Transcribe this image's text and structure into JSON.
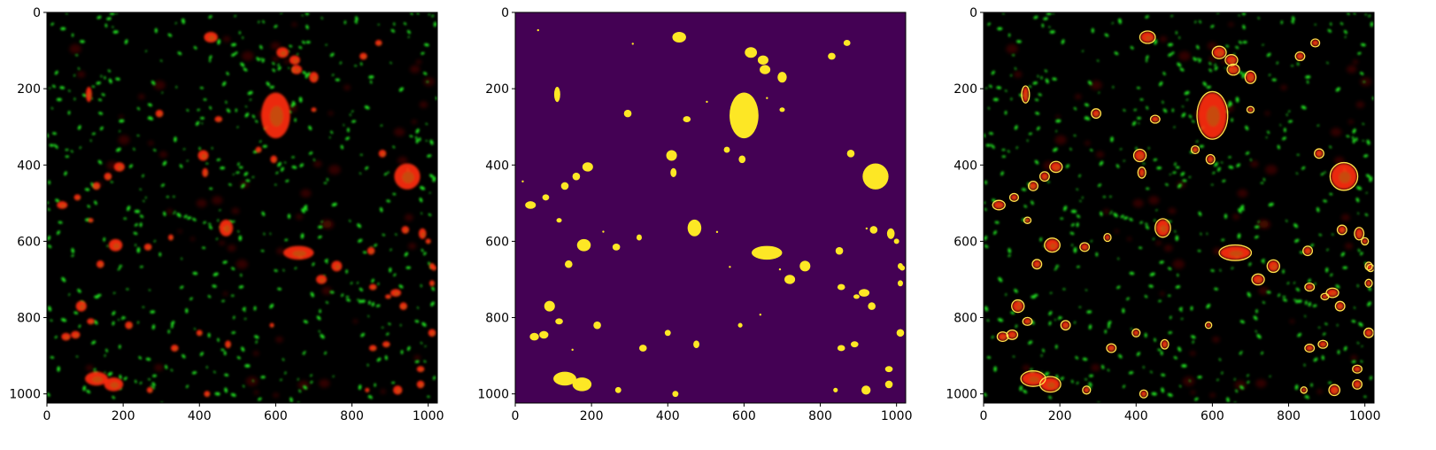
{
  "figure": {
    "panels": [
      {
        "name": "raw-fluorescence",
        "description_colors": {
          "background": "#000000",
          "cells": "#ff2a12",
          "particles": "#21e221"
        }
      },
      {
        "name": "binary-mask",
        "description_colors": {
          "background": "#440154",
          "foreground": "#fde725"
        }
      },
      {
        "name": "contour-overlay",
        "description_colors": {
          "background": "#000000",
          "contour": "#ffe24a"
        }
      }
    ],
    "axes": {
      "x_ticks": [
        "0",
        "200",
        "400",
        "600",
        "800",
        "1000"
      ],
      "y_ticks": [
        "0",
        "200",
        "400",
        "600",
        "800",
        "1000"
      ],
      "xlim": [
        0,
        1024
      ],
      "ylim": [
        1024,
        0
      ]
    }
  },
  "image_data": {
    "blobs": [
      [
        430,
        65,
        18,
        14
      ],
      [
        618,
        105,
        16,
        14
      ],
      [
        650,
        125,
        14,
        12
      ],
      [
        600,
        270,
        38,
        60
      ],
      [
        655,
        150,
        14,
        12
      ],
      [
        700,
        170,
        12,
        14
      ],
      [
        830,
        115,
        10,
        9
      ],
      [
        870,
        80,
        9,
        8
      ],
      [
        450,
        280,
        10,
        8
      ],
      [
        295,
        265,
        10,
        10
      ],
      [
        110,
        215,
        8,
        20
      ],
      [
        410,
        375,
        14,
        14
      ],
      [
        415,
        420,
        8,
        12
      ],
      [
        555,
        360,
        8,
        8
      ],
      [
        595,
        385,
        9,
        10
      ],
      [
        945,
        430,
        34,
        34
      ],
      [
        880,
        370,
        10,
        10
      ],
      [
        190,
        405,
        14,
        12
      ],
      [
        160,
        430,
        10,
        10
      ],
      [
        130,
        455,
        10,
        10
      ],
      [
        40,
        505,
        14,
        10
      ],
      [
        80,
        485,
        9,
        8
      ],
      [
        115,
        545,
        7,
        6
      ],
      [
        470,
        565,
        18,
        22
      ],
      [
        180,
        610,
        18,
        16
      ],
      [
        265,
        615,
        10,
        9
      ],
      [
        325,
        590,
        7,
        8
      ],
      [
        140,
        660,
        10,
        10
      ],
      [
        660,
        630,
        40,
        18
      ],
      [
        760,
        665,
        14,
        14
      ],
      [
        720,
        700,
        14,
        12
      ],
      [
        850,
        625,
        10,
        10
      ],
      [
        855,
        720,
        10,
        8
      ],
      [
        895,
        745,
        8,
        6
      ],
      [
        915,
        735,
        14,
        10
      ],
      [
        935,
        770,
        10,
        10
      ],
      [
        985,
        580,
        10,
        14
      ],
      [
        940,
        570,
        10,
        10
      ],
      [
        1010,
        665,
        7,
        8
      ],
      [
        1010,
        710,
        7,
        8
      ],
      [
        90,
        770,
        14,
        14
      ],
      [
        50,
        850,
        12,
        10
      ],
      [
        75,
        845,
        12,
        10
      ],
      [
        115,
        810,
        10,
        8
      ],
      [
        215,
        820,
        10,
        10
      ],
      [
        335,
        880,
        10,
        9
      ],
      [
        400,
        840,
        8,
        8
      ],
      [
        475,
        870,
        8,
        10
      ],
      [
        590,
        820,
        6,
        6
      ],
      [
        890,
        870,
        10,
        8
      ],
      [
        855,
        880,
        10,
        8
      ],
      [
        980,
        935,
        10,
        8
      ],
      [
        1010,
        840,
        10,
        10
      ],
      [
        130,
        960,
        30,
        18
      ],
      [
        175,
        975,
        25,
        18
      ],
      [
        270,
        990,
        8,
        8
      ],
      [
        420,
        1000,
        8,
        8
      ],
      [
        840,
        990,
        6,
        6
      ],
      [
        920,
        990,
        12,
        12
      ],
      [
        980,
        975,
        10,
        10
      ],
      [
        1015,
        670,
        7,
        7
      ],
      [
        700,
        255,
        7,
        6
      ],
      [
        1000,
        600,
        7,
        7
      ]
    ]
  }
}
